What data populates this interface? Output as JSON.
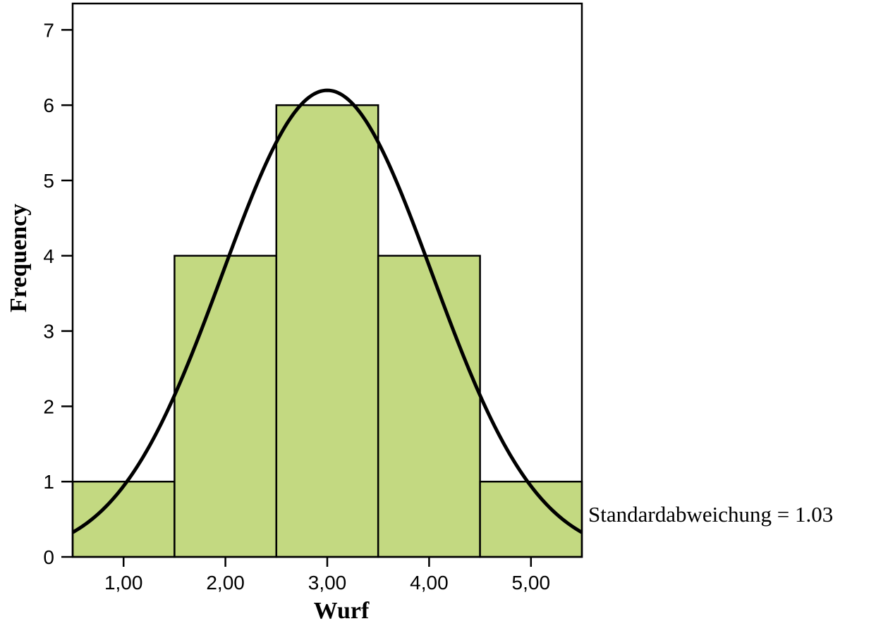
{
  "chart_data": {
    "type": "bar",
    "subtype": "histogram",
    "bins": [
      {
        "x": 1.0,
        "frequency": 1
      },
      {
        "x": 2.0,
        "frequency": 4
      },
      {
        "x": 3.0,
        "frequency": 6
      },
      {
        "x": 4.0,
        "frequency": 4
      },
      {
        "x": 5.0,
        "frequency": 1
      }
    ],
    "bin_width": 1.0,
    "xlim": [
      0.5,
      5.5
    ],
    "ylim": [
      0,
      7.35
    ],
    "x_ticks": [
      {
        "value": 1,
        "label": "1,00"
      },
      {
        "value": 2,
        "label": "2,00"
      },
      {
        "value": 3,
        "label": "3,00"
      },
      {
        "value": 4,
        "label": "4,00"
      },
      {
        "value": 5,
        "label": "5,00"
      }
    ],
    "y_ticks": [
      {
        "value": 0,
        "label": "0"
      },
      {
        "value": 1,
        "label": "1"
      },
      {
        "value": 2,
        "label": "2"
      },
      {
        "value": 3,
        "label": "3"
      },
      {
        "value": 4,
        "label": "4"
      },
      {
        "value": 5,
        "label": "5"
      },
      {
        "value": 6,
        "label": "6"
      },
      {
        "value": 7,
        "label": "7"
      }
    ],
    "xlabel": "Wurf",
    "ylabel": "Frequency",
    "annotation": "Standardabweichung = 1.03",
    "normal_curve": {
      "mean": 3.0,
      "sd": 1.03,
      "n": 16
    },
    "grid": false,
    "colors": {
      "bar_fill": "#c3d981",
      "bar_stroke": "#000000",
      "curve": "#000000"
    }
  }
}
